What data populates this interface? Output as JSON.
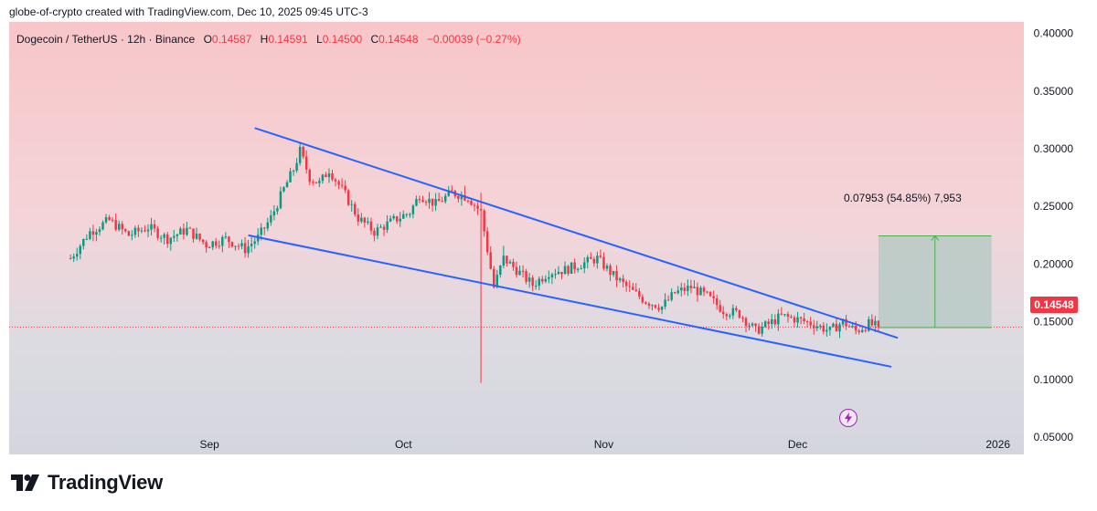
{
  "header": "globe-of-crypto created with TradingView.com, Dec 10, 2025 09:45 UTC-3",
  "legend": {
    "symbol": "Dogecoin / TetherUS · 12h · Binance",
    "o_label": "O",
    "o_value": "0.14587",
    "h_label": "H",
    "h_value": "0.14591",
    "l_label": "L",
    "l_value": "0.14500",
    "c_label": "C",
    "c_value": "0.14548",
    "change": "−0.00039 (−0.27%)"
  },
  "price_tag": "0.14548",
  "measure_label": "0.07953 (54.85%) 7,953",
  "footer_logo_text": "TradingView",
  "colors": {
    "up": "#089981",
    "down": "#f23645",
    "trendline": "#2962ff",
    "measure_fill": "#b2c8c3",
    "measure_line": "#4caf50"
  },
  "chart_data": {
    "type": "candlestick",
    "symbol": "Dogecoin / TetherUS",
    "interval": "12h",
    "exchange": "Binance",
    "y_ticks": [
      "0.40000",
      "0.35000",
      "0.30000",
      "0.25000",
      "0.20000",
      "0.15000",
      "0.10000",
      "0.05000"
    ],
    "ylim": [
      0.035,
      0.41
    ],
    "x_ticks": [
      {
        "label": "Sep",
        "t": 43
      },
      {
        "label": "Oct",
        "t": 103
      },
      {
        "label": "Nov",
        "t": 165
      },
      {
        "label": "Dec",
        "t": 225
      },
      {
        "label": "2026",
        "t": 287
      }
    ],
    "xlim": [
      -19,
      295
    ],
    "last_close": 0.14548,
    "trendlines": [
      {
        "name": "upper",
        "from": {
          "t": 57,
          "price": 0.318
        },
        "to": {
          "t": 256,
          "price": 0.136
        }
      },
      {
        "name": "lower",
        "from": {
          "t": 55,
          "price": 0.225
        },
        "to": {
          "t": 254,
          "price": 0.111
        }
      }
    ],
    "measure": {
      "t_from": 250,
      "t_to": 285,
      "price_from": 0.145,
      "price_to": 0.2245,
      "change": "0.07953",
      "percent": "54.85%",
      "bars": "7,953"
    },
    "anchors": [
      {
        "t": 0,
        "price": 0.205
      },
      {
        "t": 6,
        "price": 0.228
      },
      {
        "t": 12,
        "price": 0.238
      },
      {
        "t": 18,
        "price": 0.225
      },
      {
        "t": 24,
        "price": 0.232
      },
      {
        "t": 30,
        "price": 0.222
      },
      {
        "t": 36,
        "price": 0.23
      },
      {
        "t": 42,
        "price": 0.217
      },
      {
        "t": 48,
        "price": 0.222
      },
      {
        "t": 54,
        "price": 0.213
      },
      {
        "t": 58,
        "price": 0.223
      },
      {
        "t": 62,
        "price": 0.24
      },
      {
        "t": 66,
        "price": 0.265
      },
      {
        "t": 69,
        "price": 0.282
      },
      {
        "t": 71,
        "price": 0.298
      },
      {
        "t": 74,
        "price": 0.275
      },
      {
        "t": 77,
        "price": 0.27
      },
      {
        "t": 80,
        "price": 0.282
      },
      {
        "t": 85,
        "price": 0.26
      },
      {
        "t": 89,
        "price": 0.24
      },
      {
        "t": 94,
        "price": 0.228
      },
      {
        "t": 100,
        "price": 0.238
      },
      {
        "t": 105,
        "price": 0.245
      },
      {
        "t": 108,
        "price": 0.26
      },
      {
        "t": 113,
        "price": 0.252
      },
      {
        "t": 118,
        "price": 0.262
      },
      {
        "t": 123,
        "price": 0.258
      },
      {
        "t": 127,
        "price": 0.245
      },
      {
        "t": 131,
        "price": 0.18
      },
      {
        "t": 134,
        "price": 0.205
      },
      {
        "t": 138,
        "price": 0.195
      },
      {
        "t": 143,
        "price": 0.182
      },
      {
        "t": 148,
        "price": 0.193
      },
      {
        "t": 153,
        "price": 0.195
      },
      {
        "t": 158,
        "price": 0.2
      },
      {
        "t": 163,
        "price": 0.205
      },
      {
        "t": 168,
        "price": 0.19
      },
      {
        "t": 173,
        "price": 0.178
      },
      {
        "t": 178,
        "price": 0.168
      },
      {
        "t": 183,
        "price": 0.163
      },
      {
        "t": 187,
        "price": 0.175
      },
      {
        "t": 192,
        "price": 0.18
      },
      {
        "t": 197,
        "price": 0.172
      },
      {
        "t": 202,
        "price": 0.16
      },
      {
        "t": 207,
        "price": 0.157
      },
      {
        "t": 212,
        "price": 0.142
      },
      {
        "t": 216,
        "price": 0.148
      },
      {
        "t": 220,
        "price": 0.155
      },
      {
        "t": 225,
        "price": 0.152
      },
      {
        "t": 230,
        "price": 0.148
      },
      {
        "t": 235,
        "price": 0.142
      },
      {
        "t": 239,
        "price": 0.15
      },
      {
        "t": 243,
        "price": 0.142
      },
      {
        "t": 247,
        "price": 0.148
      },
      {
        "t": 250,
        "price": 0.1455
      }
    ],
    "wick_spikes": [
      {
        "t": 71,
        "high": 0.305
      },
      {
        "t": 127,
        "low": 0.097
      },
      {
        "t": 127,
        "high": 0.262
      },
      {
        "t": 134,
        "high": 0.216
      },
      {
        "t": 122,
        "high": 0.268
      },
      {
        "t": 249,
        "high": 0.155
      }
    ]
  }
}
